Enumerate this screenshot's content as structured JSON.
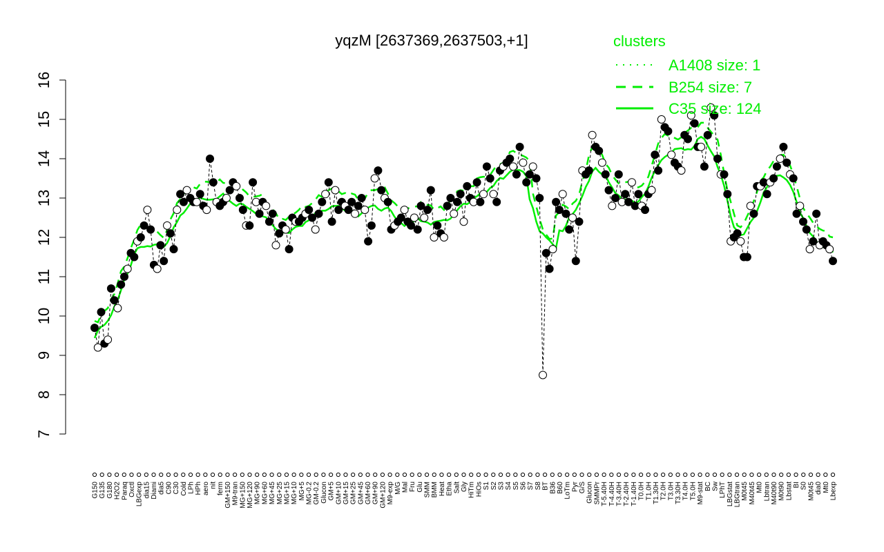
{
  "chart_data": {
    "type": "line",
    "title": "yqzM [2637369,2637503,+1]",
    "xlabel": "",
    "ylabel": "",
    "ylim": [
      7,
      16
    ],
    "yticks": [
      7,
      8,
      9,
      10,
      11,
      12,
      13,
      14,
      15,
      16
    ],
    "legend": {
      "title": "clusters",
      "placement": "top-right",
      "color": "#00ee00",
      "entries": [
        {
          "label": "A1408 size: 1",
          "style": "dotted"
        },
        {
          "label": "B254 size: 7",
          "style": "dashed"
        },
        {
          "label": "C35 size: 124",
          "style": "solid"
        }
      ]
    },
    "x_tick_labels": [
      "G150",
      "G135",
      "G180",
      "H2O2",
      "Paraq",
      "Oxctl",
      "LBGexp",
      "dia15",
      "Diami",
      "dia5",
      "C90",
      "C30",
      "Cold",
      "LPh",
      "HPh",
      "aero",
      "nit",
      "ferm",
      "GM+150",
      "M9-tran",
      "MG+150",
      "MG+120",
      "MG+90",
      "MG+60",
      "MG+45",
      "MG+25",
      "MG+15",
      "MG+10",
      "MG+5",
      "MG-0.2",
      "GM-0.2",
      "Glucon",
      "GM+5",
      "GM+10",
      "GM+15",
      "GM+25",
      "GM+45",
      "GM+60",
      "GM+90",
      "GM+120",
      "M9-exp",
      "M/G",
      "Mal",
      "Fru",
      "Glu",
      "SMM",
      "BMM",
      "Heat",
      "Etha",
      "Salt",
      "Gly",
      "HiTm",
      "HiOs",
      "S1",
      "S2",
      "S3",
      "S4",
      "S5",
      "S6",
      "S7",
      "S8",
      "BT",
      "B36",
      "B60",
      "LoTm",
      "Pyr",
      "G/S",
      "Glucon",
      "SMMPr",
      "T-5.40H",
      "T-4.40H",
      "T-3.40H",
      "T-2.40H",
      "T-1.40H",
      "T0.0H",
      "T1.0H",
      "T1.30H",
      "T2.0H",
      "T3.0H",
      "T3.30H",
      "T4.0H",
      "T5.0H",
      "M9-stat",
      "BC",
      "Sw",
      "LPhT",
      "LBGstat",
      "LBGtran",
      "M0t45",
      "M40t45",
      "Mt0",
      "Lbtran",
      "M40t90",
      "M0t90",
      "Lbstat",
      "BI",
      "S0",
      "M0t45",
      "dia0",
      "Mt0",
      "Lbexp"
    ],
    "series": [
      {
        "name": "",
        "values": [
          9.7,
          9.2,
          10.1,
          9.3,
          9.4,
          10.7,
          10.4,
          10.2,
          10.8,
          11.0,
          11.2,
          11.6,
          11.5,
          11.9,
          12.0,
          12.3,
          12.7,
          12.2,
          11.3,
          11.2,
          11.8,
          11.4,
          12.3,
          12.1,
          11.7,
          12.7,
          13.1,
          12.9,
          13.2,
          13.0,
          12.9,
          12.9,
          13.1,
          12.8,
          12.7,
          14.0,
          13.4,
          12.9,
          12.8,
          12.9,
          13.0,
          13.2,
          13.4,
          13.3,
          13.0,
          12.7,
          12.3,
          12.3,
          13.4,
          12.9,
          12.6,
          12.9,
          12.8,
          12.4,
          12.6,
          11.8,
          12.1,
          12.3,
          12.2,
          11.7,
          12.5,
          12.4,
          12.4,
          12.5,
          12.6,
          12.7,
          12.5,
          12.2,
          12.6,
          12.9,
          13.1,
          13.4,
          12.4,
          13.2,
          12.7,
          12.9,
          12.8,
          12.7,
          12.9,
          12.6,
          12.8,
          13.0,
          12.7,
          11.9,
          12.3,
          13.5,
          13.7,
          13.2,
          13.0,
          12.9,
          12.2,
          12.3,
          12.4,
          12.5,
          12.7,
          12.4,
          12.3,
          12.5,
          12.2,
          12.8,
          12.5,
          12.7,
          13.2,
          12.0,
          12.3,
          12.1,
          12.0,
          12.8,
          13.0,
          12.6,
          12.9,
          13.1,
          12.4,
          13.3,
          13.0,
          12.9,
          13.4,
          12.9,
          13.1,
          13.8,
          13.5,
          13.1,
          12.9,
          13.7,
          13.8,
          13.9,
          14.0,
          13.8,
          13.6,
          14.3,
          13.9,
          13.4,
          13.6,
          13.8,
          13.5,
          13.0,
          8.5,
          11.6,
          11.2,
          11.7,
          12.9,
          12.7,
          13.1,
          12.6,
          12.2,
          12.5,
          11.4,
          12.4,
          13.7,
          13.6,
          13.7,
          14.6,
          14.3,
          14.2,
          13.9,
          13.6,
          13.2,
          12.8,
          13.0,
          13.6,
          12.9,
          13.1,
          12.9,
          13.4,
          12.8,
          13.1,
          12.8,
          12.7,
          13.1,
          13.2,
          14.1,
          13.7,
          15.0,
          14.8,
          14.7,
          14.1,
          13.9,
          13.8,
          13.7,
          14.6,
          14.5,
          15.1,
          14.9,
          14.3,
          14.3,
          13.8,
          14.6,
          15.3,
          15.1,
          14.0,
          13.6,
          13.6,
          13.1,
          11.9,
          12.0,
          12.1,
          11.9,
          11.5,
          11.5,
          12.8,
          12.6,
          13.3,
          13.3,
          13.4,
          13.1,
          13.4,
          13.5,
          13.8,
          14.0,
          14.3,
          13.9,
          13.6,
          13.5,
          12.6,
          12.8,
          12.4,
          12.2,
          11.7,
          11.9,
          12.6,
          11.8,
          11.9,
          11.8,
          11.7,
          11.4
        ]
      }
    ]
  }
}
